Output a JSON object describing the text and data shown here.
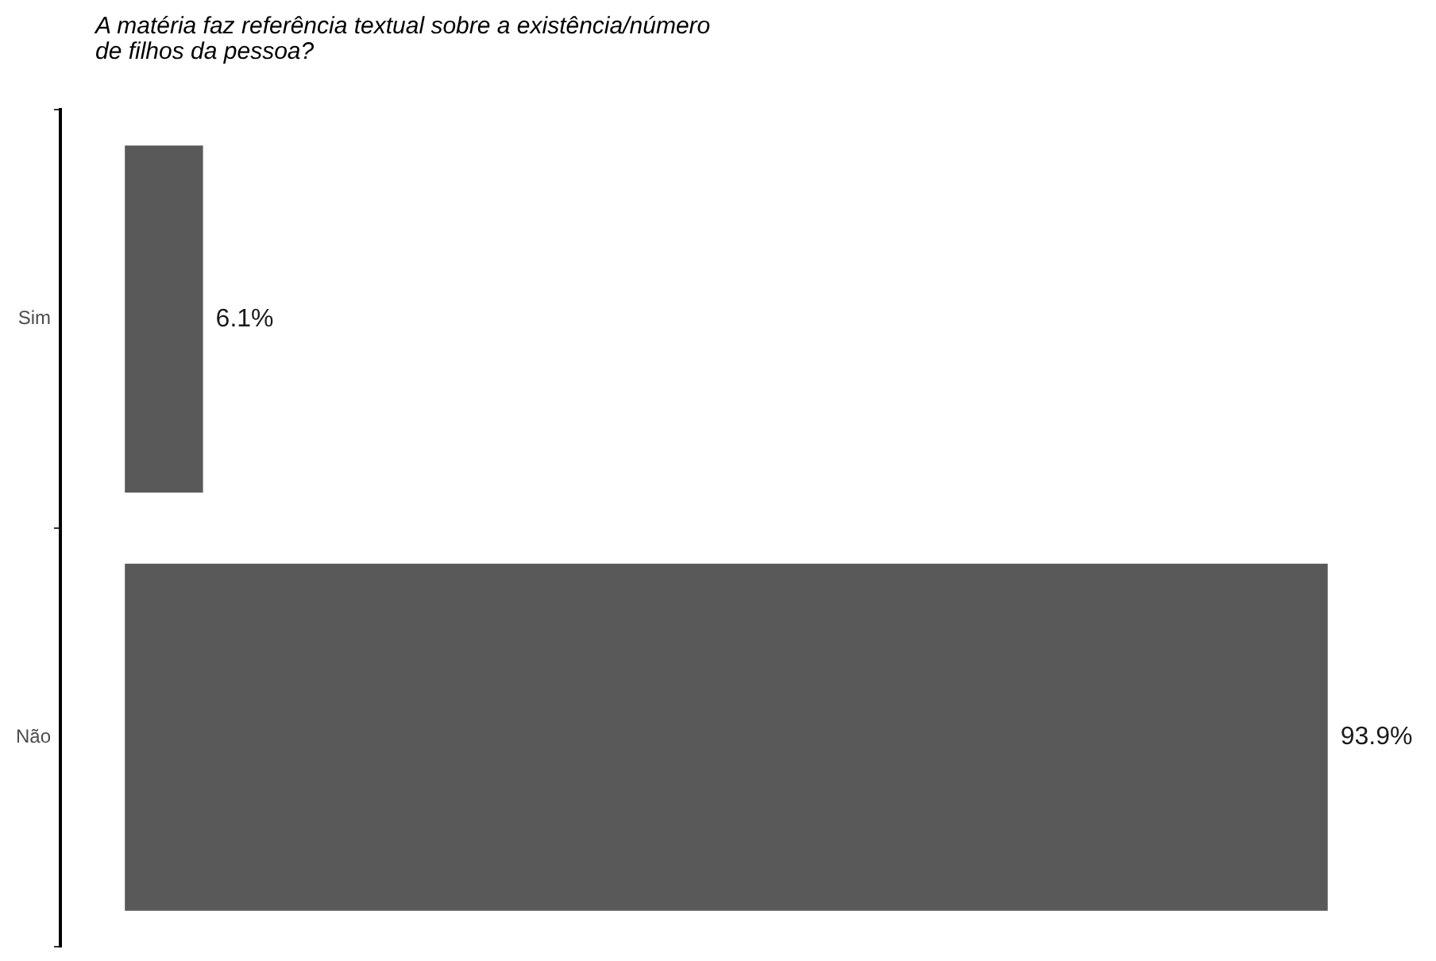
{
  "chart_data": {
    "type": "bar",
    "orientation": "horizontal",
    "title": "A matéria faz referência textual sobre a existência/número\nde filhos da pessoa?",
    "categories": [
      "Sim",
      "Não"
    ],
    "values": [
      6.1,
      93.9
    ],
    "color": "#595959",
    "value_labels": [
      "6.1%",
      "93.9%"
    ]
  }
}
